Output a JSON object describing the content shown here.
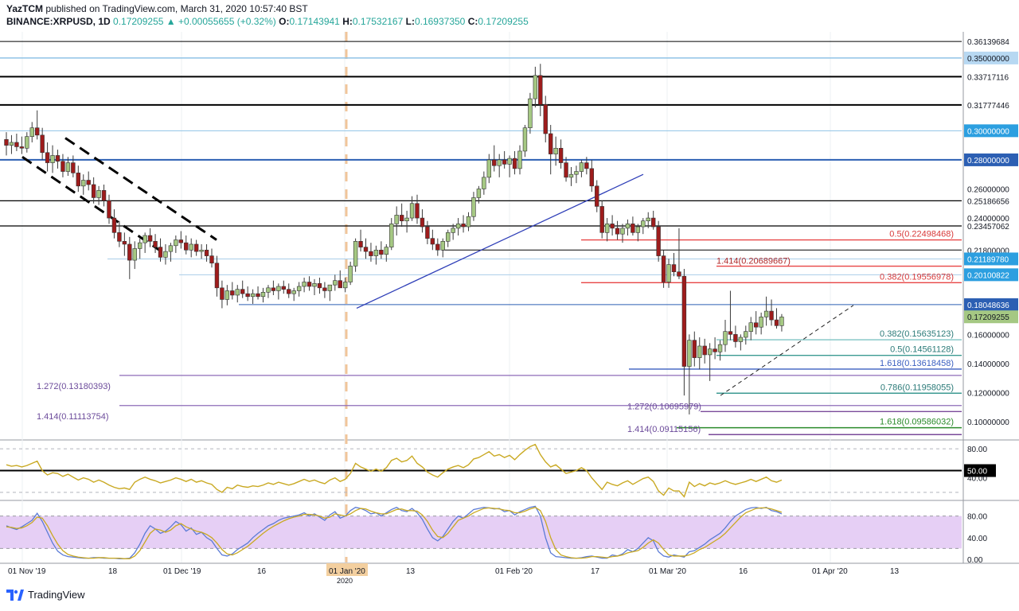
{
  "header": {
    "author": "YazTCM",
    "published": "published on TradingView.com, March 31, 2020 10:57:40 BST",
    "symbol": "BINANCE:XRPUSD, 1D",
    "last": "0.17209255",
    "change": "▲ +0.00055655 (+0.32%)",
    "o_label": "O:",
    "o": "0.17143941",
    "h_label": "H:",
    "h": "0.17532167",
    "l_label": "L:",
    "l": "0.16937350",
    "c_label": "C:",
    "c": "0.17209255"
  },
  "footer": {
    "brand": "TradingView",
    "logo_icon": "tradingview-logo-icon"
  },
  "colors": {
    "up": "#a5c883",
    "down": "#9e1c1c",
    "wick": "#3a3a3a",
    "rsi": "#c9a922",
    "stoch_k": "#5b7bd6",
    "stoch_d": "#c9a922",
    "stoch_band": "#e6cff5"
  },
  "chart_data": {
    "type": "candlestick",
    "price_axis": {
      "range": [
        0.088,
        0.368
      ],
      "ticks": [
        "0.36139684",
        "0.35000000",
        "0.33717116",
        "0.31777446",
        "0.30000000",
        "0.28000000",
        "0.26000000",
        "0.25186656",
        "0.24000000",
        "0.23457062",
        "0.21800000",
        "0.21189780",
        "0.20100822",
        "0.18048636",
        "0.17209255",
        "0.16000000",
        "0.14000000",
        "0.12000000",
        "0.10000000"
      ]
    },
    "time_axis": [
      "01 Nov '19",
      "18",
      "01 Dec '19",
      "16",
      "2020",
      "13",
      "01 Feb '20",
      "17",
      "01 Mar '20",
      "16",
      "01 Apr '20",
      "13"
    ],
    "ohlc_daily_from_2019_11_01": [
      [
        0.294,
        0.299,
        0.283,
        0.29
      ],
      [
        0.29,
        0.297,
        0.284,
        0.292
      ],
      [
        0.292,
        0.298,
        0.286,
        0.289
      ],
      [
        0.289,
        0.296,
        0.284,
        0.288
      ],
      [
        0.288,
        0.299,
        0.285,
        0.296
      ],
      [
        0.296,
        0.306,
        0.292,
        0.302
      ],
      [
        0.302,
        0.314,
        0.294,
        0.297
      ],
      [
        0.297,
        0.302,
        0.28,
        0.285
      ],
      [
        0.285,
        0.292,
        0.272,
        0.278
      ],
      [
        0.278,
        0.29,
        0.271,
        0.283
      ],
      [
        0.283,
        0.287,
        0.274,
        0.279
      ],
      [
        0.279,
        0.284,
        0.268,
        0.272
      ],
      [
        0.272,
        0.282,
        0.269,
        0.278
      ],
      [
        0.278,
        0.283,
        0.268,
        0.271
      ],
      [
        0.271,
        0.276,
        0.258,
        0.262
      ],
      [
        0.262,
        0.27,
        0.256,
        0.266
      ],
      [
        0.266,
        0.272,
        0.259,
        0.263
      ],
      [
        0.263,
        0.268,
        0.25,
        0.254
      ],
      [
        0.254,
        0.262,
        0.249,
        0.259
      ],
      [
        0.259,
        0.263,
        0.248,
        0.252
      ],
      [
        0.252,
        0.256,
        0.236,
        0.24
      ],
      [
        0.24,
        0.246,
        0.226,
        0.23
      ],
      [
        0.23,
        0.238,
        0.22,
        0.224
      ],
      [
        0.224,
        0.23,
        0.214,
        0.222
      ],
      [
        0.222,
        0.227,
        0.198,
        0.211
      ],
      [
        0.211,
        0.224,
        0.205,
        0.219
      ],
      [
        0.219,
        0.226,
        0.212,
        0.223
      ],
      [
        0.223,
        0.23,
        0.216,
        0.228
      ],
      [
        0.228,
        0.233,
        0.22,
        0.224
      ],
      [
        0.224,
        0.229,
        0.216,
        0.22
      ],
      [
        0.22,
        0.226,
        0.21,
        0.213
      ],
      [
        0.213,
        0.222,
        0.208,
        0.217
      ],
      [
        0.217,
        0.223,
        0.21,
        0.221
      ],
      [
        0.221,
        0.228,
        0.216,
        0.225
      ],
      [
        0.225,
        0.231,
        0.219,
        0.223
      ],
      [
        0.223,
        0.228,
        0.215,
        0.218
      ],
      [
        0.218,
        0.226,
        0.213,
        0.222
      ],
      [
        0.222,
        0.225,
        0.214,
        0.217
      ],
      [
        0.217,
        0.222,
        0.212,
        0.218
      ],
      [
        0.218,
        0.222,
        0.21,
        0.214
      ],
      [
        0.214,
        0.219,
        0.206,
        0.209
      ],
      [
        0.209,
        0.214,
        0.186,
        0.192
      ],
      [
        0.192,
        0.197,
        0.178,
        0.184
      ],
      [
        0.184,
        0.194,
        0.18,
        0.19
      ],
      [
        0.19,
        0.196,
        0.184,
        0.187
      ],
      [
        0.187,
        0.194,
        0.182,
        0.191
      ],
      [
        0.191,
        0.197,
        0.185,
        0.188
      ],
      [
        0.188,
        0.193,
        0.183,
        0.186
      ],
      [
        0.186,
        0.191,
        0.181,
        0.188
      ],
      [
        0.188,
        0.193,
        0.184,
        0.186
      ],
      [
        0.186,
        0.192,
        0.182,
        0.189
      ],
      [
        0.189,
        0.194,
        0.185,
        0.192
      ],
      [
        0.192,
        0.197,
        0.187,
        0.19
      ],
      [
        0.19,
        0.195,
        0.184,
        0.193
      ],
      [
        0.193,
        0.197,
        0.188,
        0.191
      ],
      [
        0.191,
        0.195,
        0.185,
        0.188
      ],
      [
        0.188,
        0.192,
        0.183,
        0.19
      ],
      [
        0.19,
        0.196,
        0.186,
        0.193
      ],
      [
        0.193,
        0.199,
        0.189,
        0.196
      ],
      [
        0.196,
        0.2,
        0.19,
        0.193
      ],
      [
        0.193,
        0.198,
        0.187,
        0.195
      ],
      [
        0.195,
        0.199,
        0.188,
        0.192
      ],
      [
        0.192,
        0.196,
        0.185,
        0.19
      ],
      [
        0.19,
        0.194,
        0.183,
        0.194
      ],
      [
        0.194,
        0.201,
        0.19,
        0.197
      ],
      [
        0.197,
        0.204,
        0.192,
        0.192
      ],
      [
        0.192,
        0.199,
        0.189,
        0.196
      ],
      [
        0.196,
        0.21,
        0.194,
        0.207
      ],
      [
        0.207,
        0.226,
        0.203,
        0.224
      ],
      [
        0.224,
        0.232,
        0.217,
        0.22
      ],
      [
        0.22,
        0.226,
        0.212,
        0.217
      ],
      [
        0.217,
        0.223,
        0.21,
        0.214
      ],
      [
        0.214,
        0.221,
        0.208,
        0.218
      ],
      [
        0.218,
        0.224,
        0.212,
        0.215
      ],
      [
        0.215,
        0.222,
        0.21,
        0.22
      ],
      [
        0.22,
        0.24,
        0.218,
        0.236
      ],
      [
        0.236,
        0.248,
        0.228,
        0.242
      ],
      [
        0.242,
        0.25,
        0.234,
        0.238
      ],
      [
        0.238,
        0.245,
        0.23,
        0.24
      ],
      [
        0.24,
        0.255,
        0.238,
        0.25
      ],
      [
        0.25,
        0.256,
        0.236,
        0.24
      ],
      [
        0.24,
        0.246,
        0.23,
        0.234
      ],
      [
        0.234,
        0.238,
        0.222,
        0.226
      ],
      [
        0.226,
        0.232,
        0.218,
        0.222
      ],
      [
        0.222,
        0.226,
        0.214,
        0.218
      ],
      [
        0.218,
        0.226,
        0.213,
        0.224
      ],
      [
        0.224,
        0.232,
        0.22,
        0.23
      ],
      [
        0.23,
        0.236,
        0.225,
        0.233
      ],
      [
        0.233,
        0.24,
        0.228,
        0.236
      ],
      [
        0.236,
        0.242,
        0.23,
        0.234
      ],
      [
        0.234,
        0.244,
        0.231,
        0.241
      ],
      [
        0.241,
        0.258,
        0.238,
        0.254
      ],
      [
        0.254,
        0.262,
        0.25,
        0.26
      ],
      [
        0.26,
        0.272,
        0.256,
        0.268
      ],
      [
        0.268,
        0.284,
        0.264,
        0.28
      ],
      [
        0.28,
        0.29,
        0.272,
        0.276
      ],
      [
        0.276,
        0.284,
        0.268,
        0.28
      ],
      [
        0.28,
        0.286,
        0.274,
        0.277
      ],
      [
        0.277,
        0.283,
        0.268,
        0.281
      ],
      [
        0.281,
        0.286,
        0.27,
        0.274
      ],
      [
        0.274,
        0.29,
        0.27,
        0.286
      ],
      [
        0.286,
        0.304,
        0.282,
        0.302
      ],
      [
        0.302,
        0.326,
        0.298,
        0.322
      ],
      [
        0.322,
        0.344,
        0.316,
        0.338
      ],
      [
        0.338,
        0.346,
        0.31,
        0.318
      ],
      [
        0.318,
        0.324,
        0.292,
        0.298
      ],
      [
        0.298,
        0.304,
        0.27,
        0.284
      ],
      [
        0.284,
        0.296,
        0.276,
        0.288
      ],
      [
        0.288,
        0.294,
        0.274,
        0.278
      ],
      [
        0.278,
        0.282,
        0.265,
        0.268
      ],
      [
        0.268,
        0.275,
        0.262,
        0.27
      ],
      [
        0.27,
        0.276,
        0.264,
        0.272
      ],
      [
        0.272,
        0.28,
        0.268,
        0.278
      ],
      [
        0.278,
        0.282,
        0.27,
        0.274
      ],
      [
        0.274,
        0.28,
        0.258,
        0.262
      ],
      [
        0.262,
        0.266,
        0.244,
        0.248
      ],
      [
        0.248,
        0.252,
        0.226,
        0.23
      ],
      [
        0.23,
        0.24,
        0.224,
        0.236
      ],
      [
        0.236,
        0.242,
        0.228,
        0.233
      ],
      [
        0.233,
        0.238,
        0.225,
        0.229
      ],
      [
        0.229,
        0.236,
        0.223,
        0.233
      ],
      [
        0.233,
        0.239,
        0.228,
        0.236
      ],
      [
        0.236,
        0.241,
        0.228,
        0.23
      ],
      [
        0.23,
        0.236,
        0.224,
        0.234
      ],
      [
        0.234,
        0.24,
        0.229,
        0.238
      ],
      [
        0.238,
        0.244,
        0.233,
        0.24
      ],
      [
        0.24,
        0.245,
        0.232,
        0.234
      ],
      [
        0.234,
        0.238,
        0.21,
        0.214
      ],
      [
        0.214,
        0.218,
        0.192,
        0.196
      ],
      [
        0.196,
        0.212,
        0.192,
        0.208
      ],
      [
        0.208,
        0.216,
        0.2,
        0.203
      ],
      [
        0.203,
        0.233,
        0.198,
        0.2
      ],
      [
        0.2,
        0.205,
        0.118,
        0.138
      ],
      [
        0.138,
        0.16,
        0.105,
        0.156
      ],
      [
        0.156,
        0.162,
        0.138,
        0.144
      ],
      [
        0.144,
        0.158,
        0.136,
        0.152
      ],
      [
        0.152,
        0.157,
        0.14,
        0.146
      ],
      [
        0.146,
        0.154,
        0.128,
        0.15
      ],
      [
        0.15,
        0.158,
        0.143,
        0.148
      ],
      [
        0.148,
        0.156,
        0.142,
        0.153
      ],
      [
        0.153,
        0.17,
        0.148,
        0.162
      ],
      [
        0.162,
        0.19,
        0.156,
        0.16
      ],
      [
        0.16,
        0.166,
        0.151,
        0.155
      ],
      [
        0.155,
        0.16,
        0.149,
        0.158
      ],
      [
        0.158,
        0.166,
        0.153,
        0.162
      ],
      [
        0.162,
        0.172,
        0.156,
        0.168
      ],
      [
        0.168,
        0.176,
        0.16,
        0.165
      ],
      [
        0.165,
        0.175,
        0.16,
        0.172
      ],
      [
        0.172,
        0.186,
        0.166,
        0.176
      ],
      [
        0.176,
        0.184,
        0.166,
        0.17
      ],
      [
        0.17,
        0.178,
        0.164,
        0.166
      ],
      [
        0.166,
        0.174,
        0.162,
        0.172
      ]
    ],
    "fib_levels_left": [
      {
        "label": "1.272(0.13180393)",
        "price": 0.1318
      },
      {
        "label": "1.414(0.11113754)",
        "price": 0.1111
      }
    ],
    "fib_levels_right": [
      {
        "label": "0.5(0.22498468)",
        "price": 0.22498
      },
      {
        "label": "1.414(0.20689667)",
        "price": 0.2069
      },
      {
        "label": "0.382(0.19556978)",
        "price": 0.19557
      },
      {
        "label": "0.382(0.15635123)",
        "price": 0.15635
      },
      {
        "label": "0.5(0.14561128)",
        "price": 0.14561
      },
      {
        "label": "1.618(0.13618458)",
        "price": 0.13618
      },
      {
        "label": "0.786(0.11958055)",
        "price": 0.11958
      },
      {
        "label": "1.272(0.10695979)",
        "price": 0.10696
      },
      {
        "label": "1.618(0.09586032)",
        "price": 0.09586
      },
      {
        "label": "1.414(0.09115156)",
        "price": 0.09115
      }
    ],
    "rsi": {
      "ticks": [
        "80.00",
        "50.00",
        "40.00"
      ],
      "values": [
        58,
        56,
        57,
        55,
        57,
        60,
        63,
        50,
        44,
        47,
        46,
        42,
        45,
        41,
        37,
        40,
        38,
        34,
        37,
        34,
        30,
        27,
        25,
        26,
        24,
        34,
        38,
        41,
        38,
        36,
        33,
        35,
        37,
        40,
        38,
        35,
        38,
        34,
        36,
        33,
        31,
        24,
        20,
        27,
        25,
        30,
        28,
        27,
        29,
        28,
        30,
        33,
        31,
        34,
        32,
        30,
        32,
        35,
        38,
        35,
        37,
        34,
        32,
        37,
        40,
        35,
        38,
        46,
        60,
        55,
        52,
        49,
        52,
        49,
        54,
        64,
        67,
        62,
        64,
        70,
        60,
        55,
        48,
        44,
        41,
        47,
        52,
        55,
        57,
        54,
        58,
        66,
        68,
        72,
        76,
        70,
        72,
        68,
        71,
        65,
        72,
        78,
        83,
        86,
        72,
        62,
        55,
        58,
        52,
        46,
        48,
        50,
        54,
        50,
        40,
        32,
        24,
        34,
        31,
        29,
        33,
        36,
        31,
        35,
        39,
        41,
        35,
        22,
        16,
        26,
        22,
        22,
        14,
        34,
        28,
        32,
        29,
        33,
        31,
        33,
        36,
        33,
        31,
        33,
        35,
        38,
        35,
        38,
        41,
        36,
        34,
        37
      ],
      "level_line": 50
    },
    "stoch_rsi": {
      "ticks": [
        "80.00",
        "40.00",
        "0.00"
      ],
      "k": [
        62,
        58,
        55,
        60,
        66,
        72,
        85,
        70,
        50,
        30,
        15,
        8,
        5,
        4,
        3,
        2,
        2,
        3,
        3,
        2,
        2,
        2,
        1,
        1,
        2,
        12,
        28,
        48,
        62,
        56,
        48,
        52,
        60,
        70,
        64,
        52,
        58,
        46,
        50,
        40,
        34,
        20,
        8,
        6,
        10,
        18,
        24,
        30,
        40,
        48,
        55,
        62,
        66,
        72,
        76,
        78,
        80,
        82,
        86,
        80,
        84,
        78,
        72,
        82,
        88,
        76,
        80,
        90,
        96,
        94,
        90,
        84,
        86,
        80,
        86,
        92,
        96,
        90,
        88,
        94,
        86,
        74,
        56,
        40,
        34,
        42,
        56,
        70,
        80,
        76,
        84,
        92,
        94,
        96,
        95,
        93,
        94,
        88,
        90,
        82,
        88,
        92,
        96,
        98,
        80,
        40,
        12,
        5,
        4,
        3,
        2,
        2,
        3,
        5,
        6,
        4,
        2,
        2,
        8,
        6,
        10,
        18,
        14,
        20,
        30,
        40,
        34,
        14,
        6,
        4,
        8,
        6,
        4,
        14,
        16,
        22,
        28,
        36,
        42,
        48,
        58,
        70,
        80,
        86,
        92,
        95,
        96,
        94,
        96,
        90,
        88,
        84
      ],
      "d": [
        60,
        59,
        57,
        58,
        62,
        68,
        78,
        76,
        62,
        44,
        28,
        16,
        9,
        6,
        4,
        3,
        2,
        2,
        3,
        3,
        2,
        2,
        2,
        1,
        1,
        6,
        16,
        32,
        48,
        56,
        54,
        50,
        54,
        62,
        66,
        60,
        56,
        52,
        50,
        46,
        40,
        30,
        18,
        10,
        8,
        12,
        18,
        24,
        32,
        40,
        48,
        55,
        61,
        66,
        71,
        75,
        78,
        80,
        83,
        83,
        82,
        80,
        76,
        78,
        84,
        82,
        80,
        84,
        90,
        94,
        93,
        89,
        86,
        84,
        84,
        88,
        92,
        93,
        90,
        90,
        89,
        82,
        70,
        54,
        42,
        40,
        48,
        60,
        72,
        76,
        80,
        86,
        90,
        94,
        95,
        94,
        93,
        91,
        90,
        86,
        86,
        89,
        93,
        96,
        90,
        70,
        40,
        18,
        8,
        5,
        3,
        2,
        2,
        3,
        5,
        5,
        4,
        3,
        5,
        6,
        8,
        12,
        14,
        16,
        22,
        30,
        36,
        30,
        18,
        8,
        6,
        6,
        6,
        8,
        12,
        18,
        22,
        28,
        34,
        40,
        48,
        58,
        68,
        78,
        86,
        90,
        94,
        95,
        95,
        93,
        90,
        87
      ],
      "band": [
        20,
        80
      ]
    }
  }
}
